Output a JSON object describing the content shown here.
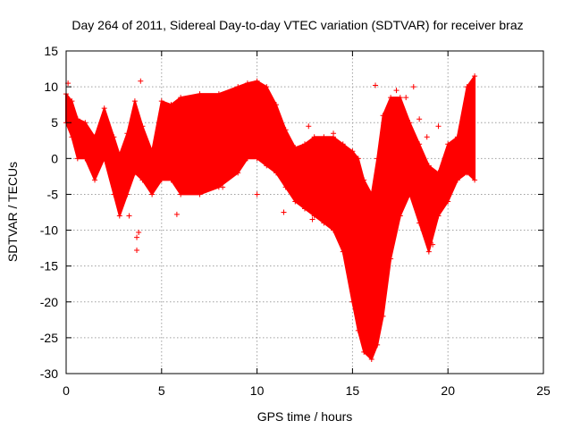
{
  "chart_data": {
    "type": "scatter",
    "title": "Day 264 of 2011, Sidereal Day-to-day VTEC variation (SDTVAR) for receiver braz",
    "xlabel": "GPS time / hours",
    "ylabel": "SDTVAR / TECUs",
    "xlim": [
      0,
      25
    ],
    "ylim": [
      -30,
      15
    ],
    "x_ticks": [
      0,
      5,
      10,
      15,
      20,
      25
    ],
    "y_ticks": [
      -30,
      -25,
      -20,
      -15,
      -10,
      -5,
      0,
      5,
      10,
      15
    ],
    "grid": true,
    "marker": "+",
    "color": "#ff0000",
    "series": [
      {
        "name": "",
        "band": {
          "x": [
            0.0,
            0.3,
            0.6,
            1.0,
            1.5,
            2.0,
            2.5,
            2.8,
            3.2,
            3.6,
            4.0,
            4.5,
            5.0,
            5.5,
            6.0,
            7.0,
            8.0,
            9.0,
            9.5,
            10.0,
            10.5,
            11.0,
            11.5,
            12.0,
            12.5,
            13.0,
            13.5,
            14.0,
            14.5,
            15.0,
            15.3,
            15.6,
            16.0,
            16.3,
            16.6,
            17.0,
            17.5,
            18.0,
            18.5,
            19.0,
            19.5,
            20.0,
            20.5,
            21.0,
            21.4
          ],
          "upper": [
            9.0,
            8.0,
            5.5,
            5.0,
            3.0,
            7.0,
            3.0,
            0.5,
            3.5,
            8.0,
            4.5,
            1.0,
            8.0,
            7.5,
            8.5,
            9.0,
            9.0,
            10.0,
            10.5,
            10.8,
            10.0,
            7.5,
            4.0,
            1.5,
            2.0,
            3.0,
            3.0,
            3.0,
            2.0,
            1.0,
            0.0,
            -3.0,
            -5.0,
            0.0,
            6.0,
            8.5,
            8.5,
            5.0,
            2.0,
            -1.0,
            -2.0,
            2.0,
            3.0,
            10.0,
            11.5
          ],
          "lower": [
            5.0,
            3.0,
            0.0,
            0.0,
            -3.0,
            0.0,
            -5.0,
            -8.0,
            -5.0,
            -2.0,
            -3.0,
            -5.0,
            -3.0,
            -3.0,
            -5.0,
            -5.0,
            -4.0,
            -2.0,
            0.0,
            0.0,
            -1.0,
            -2.0,
            -4.0,
            -6.0,
            -7.0,
            -8.0,
            -9.0,
            -10.0,
            -13.0,
            -20.0,
            -24.0,
            -27.0,
            -28.0,
            -26.0,
            -22.0,
            -14.0,
            -8.0,
            -5.0,
            -9.0,
            -13.0,
            -8.0,
            -6.0,
            -3.0,
            -2.0,
            -3.0
          ]
        },
        "outliers": [
          {
            "x": 0.1,
            "y": 10.5
          },
          {
            "x": 3.3,
            "y": -8.0
          },
          {
            "x": 3.7,
            "y": -12.8
          },
          {
            "x": 3.7,
            "y": -11.0
          },
          {
            "x": 3.8,
            "y": -10.3
          },
          {
            "x": 3.9,
            "y": 10.8
          },
          {
            "x": 5.8,
            "y": -7.8
          },
          {
            "x": 6.4,
            "y": -4.3
          },
          {
            "x": 8.2,
            "y": -4.0
          },
          {
            "x": 10.0,
            "y": -5.0
          },
          {
            "x": 11.4,
            "y": -7.5
          },
          {
            "x": 12.9,
            "y": -8.5
          },
          {
            "x": 12.7,
            "y": 4.5
          },
          {
            "x": 14.0,
            "y": 3.5
          },
          {
            "x": 16.2,
            "y": 10.2
          },
          {
            "x": 17.3,
            "y": 9.5
          },
          {
            "x": 17.8,
            "y": 8.5
          },
          {
            "x": 18.2,
            "y": 10.0
          },
          {
            "x": 18.5,
            "y": 5.5
          },
          {
            "x": 18.9,
            "y": 3.0
          },
          {
            "x": 19.5,
            "y": 4.5
          },
          {
            "x": 19.2,
            "y": -12.0
          }
        ]
      }
    ]
  }
}
